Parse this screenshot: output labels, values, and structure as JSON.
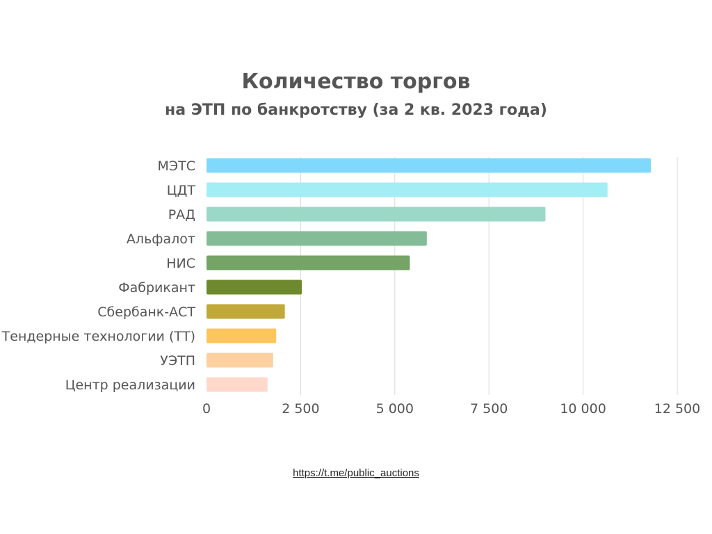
{
  "chart_data": {
    "type": "bar",
    "orientation": "horizontal",
    "title": "Количество торгов",
    "subtitle": "на ЭТП по банкротству (за 2 кв. 2023 года)",
    "categories": [
      "МЭТС",
      "ЦДТ",
      "РАД",
      "Альфалот",
      "НИС",
      "Фабрикант",
      "Сбербанк-АСТ",
      "Тендерные технологии (ТТ)",
      "УЭТП",
      "Центр реализации"
    ],
    "values": [
      11800,
      10650,
      9000,
      5850,
      5400,
      2530,
      2080,
      1850,
      1770,
      1620
    ],
    "colors": [
      "#7fd9fc",
      "#a3eef5",
      "#9cd8c6",
      "#84bc98",
      "#76a366",
      "#6e892e",
      "#c0a93a",
      "#fdc55d",
      "#fdd19f",
      "#fdd8cb"
    ],
    "xlim": [
      0,
      12500
    ],
    "xticks": [
      0,
      2500,
      5000,
      7500,
      10000,
      12500
    ],
    "xtick_labels": [
      "0",
      "2 500",
      "5 000",
      "7 500",
      "10 000",
      "12 500"
    ],
    "grid": true,
    "legend": "none"
  },
  "footer": {
    "link_text": "https://t.me/public_auctions"
  }
}
